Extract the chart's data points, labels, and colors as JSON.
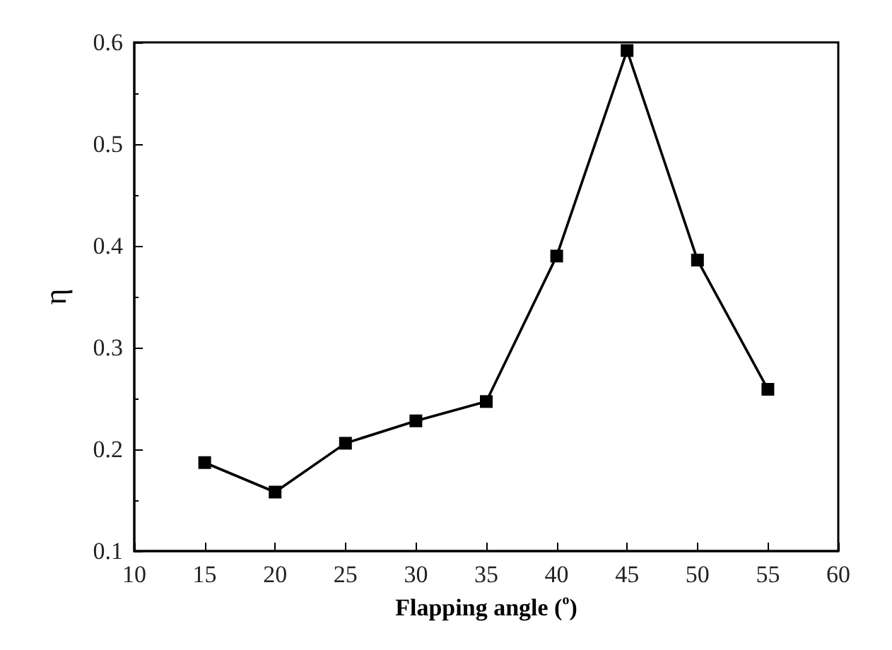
{
  "chart_data": {
    "type": "line",
    "xlabel": "Flapping angle ($^{o}$)",
    "ylabel": "η",
    "x": [
      15,
      20,
      25,
      30,
      35,
      40,
      45,
      50,
      55
    ],
    "series": [
      {
        "color": "#000000",
        "values": [
          0.187,
          0.158,
          0.206,
          0.228,
          0.247,
          0.39,
          0.592,
          0.386,
          0.259
        ]
      }
    ],
    "xlim": [
      10,
      60
    ],
    "xticks": [
      10,
      15,
      20,
      25,
      30,
      35,
      40,
      45,
      50,
      55,
      60
    ],
    "ylim": [
      0.1,
      0.6
    ],
    "yticks": [
      0.1,
      0.2,
      0.3,
      0.4,
      0.5,
      0.6
    ],
    "marker": "square",
    "line_style": "solid",
    "grid": false
  }
}
